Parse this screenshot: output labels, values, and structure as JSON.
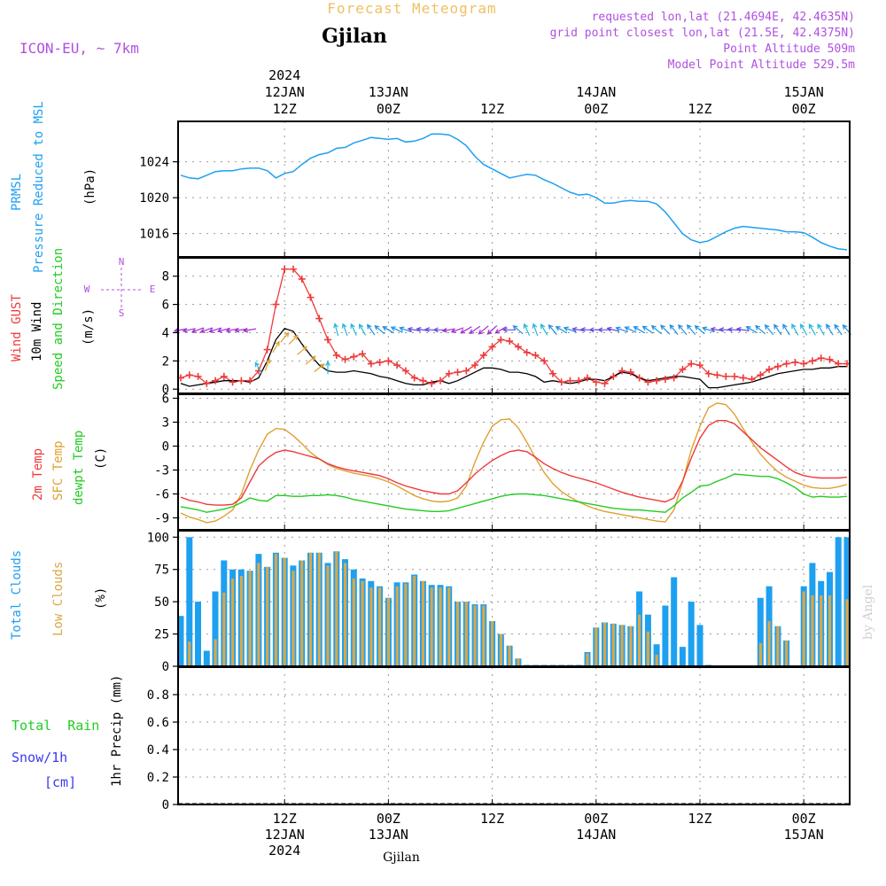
{
  "header": {
    "product": "Forecast Meteogram",
    "model": "ICON-EU, ~ 7km",
    "location": "Gjilan",
    "requested": "requested lon,lat (21.4694E, 42.4635N)",
    "gridpoint": "grid point closest lon,lat (21.5E, 42.4375N)",
    "point_alt": "Point Altitude 509m",
    "model_alt": "Model Point Altitude 529.5m",
    "footer_location": "Gjilan",
    "watermark": "by Angel"
  },
  "colors": {
    "pressure": "#1ea0f0",
    "gust": "#ee3a3a",
    "wind": "#000000",
    "temp2m": "#ee3a3a",
    "sfc": "#e0a030",
    "dewpt": "#22cc22",
    "total_clouds": "#1ea0f0",
    "low_clouds": "#d8a848",
    "label_green": "#22cc22",
    "label_purple": "#b050e0",
    "title_orange": "#f0c060"
  },
  "time_axis": {
    "top": [
      {
        "hour": 12,
        "lines": [
          "2024",
          "12JAN",
          "12Z"
        ]
      },
      {
        "hour": 24,
        "lines": [
          "13JAN",
          "00Z"
        ]
      },
      {
        "hour": 36,
        "lines": [
          "12Z"
        ]
      },
      {
        "hour": 48,
        "lines": [
          "14JAN",
          "00Z"
        ]
      },
      {
        "hour": 60,
        "lines": [
          "12Z"
        ]
      },
      {
        "hour": 72,
        "lines": [
          "15JAN",
          "00Z"
        ]
      }
    ],
    "bottom": [
      {
        "hour": 12,
        "lines": [
          "12Z",
          "12JAN",
          "2024"
        ]
      },
      {
        "hour": 24,
        "lines": [
          "00Z",
          "13JAN"
        ]
      },
      {
        "hour": 36,
        "lines": [
          "12Z"
        ]
      },
      {
        "hour": 48,
        "lines": [
          "00Z",
          "14JAN"
        ]
      },
      {
        "hour": 60,
        "lines": [
          "12Z"
        ]
      },
      {
        "hour": 72,
        "lines": [
          "00Z",
          "15JAN"
        ]
      }
    ]
  },
  "panel_labels": {
    "pressure": {
      "title1": "PRMSL",
      "title2": "Pressure Reduced to MSL",
      "unit": "(hPa)"
    },
    "wind": {
      "title1": "Wind GUST",
      "title2": "10m Wind",
      "title3": "Speed and Direction",
      "unit": "(m/s)",
      "compass": [
        "N",
        "S",
        "W",
        "E"
      ]
    },
    "temp": {
      "title1": "2m Temp",
      "title2": "SFC Temp",
      "title3": "dewpt Temp",
      "unit": "(C)"
    },
    "clouds": {
      "title1": "Total Clouds",
      "title2": "Low Clouds",
      "unit": "(%)"
    },
    "precip": {
      "title1": "Total  Rain",
      "title2": "Snow/1h",
      "title3": "[cm]",
      "unit": "1hr Precip (mm)"
    }
  },
  "chart_data": [
    {
      "type": "line",
      "title": "PRMSL Pressure Reduced to MSL",
      "ylabel": "hPa",
      "x_start_hour": 0,
      "x_end_hour": 77,
      "x_step_hours": 1,
      "ylim": [
        1013.4,
        1028.5
      ],
      "yticks": [
        1016,
        1020,
        1024
      ],
      "series": [
        {
          "name": "PRMSL",
          "values": [
            1022.5,
            1022.2,
            1022.1,
            1022.5,
            1022.9,
            1023.0,
            1023.0,
            1023.2,
            1023.3,
            1023.3,
            1023.0,
            1022.2,
            1022.7,
            1022.9,
            1023.7,
            1024.4,
            1024.8,
            1025.0,
            1025.5,
            1025.6,
            1026.1,
            1026.4,
            1026.7,
            1026.6,
            1026.5,
            1026.6,
            1026.2,
            1026.3,
            1026.6,
            1027.1,
            1027.1,
            1027.0,
            1026.5,
            1025.8,
            1024.6,
            1023.7,
            1023.2,
            1022.7,
            1022.2,
            1022.4,
            1022.6,
            1022.5,
            1022.0,
            1021.6,
            1021.1,
            1020.6,
            1020.3,
            1020.4,
            1020.0,
            1019.4,
            1019.4,
            1019.6,
            1019.7,
            1019.6,
            1019.6,
            1019.3,
            1018.4,
            1017.2,
            1016.0,
            1015.3,
            1015.0,
            1015.2,
            1015.7,
            1016.2,
            1016.6,
            1016.8,
            1016.7,
            1016.6,
            1016.5,
            1016.4,
            1016.2,
            1016.2,
            1016.1,
            1015.6,
            1015.0,
            1014.6,
            1014.3,
            1014.2
          ]
        }
      ]
    },
    {
      "type": "line",
      "title": "Wind GUST / 10m Wind Speed and Direction",
      "ylabel": "m/s",
      "x_start_hour": 0,
      "x_end_hour": 77,
      "x_step_hours": 1,
      "ylim": [
        -0.3,
        9.3
      ],
      "yticks": [
        0,
        2,
        4,
        6,
        8
      ],
      "series": [
        {
          "name": "Wind GUST",
          "values": [
            0.8,
            1.0,
            0.9,
            0.4,
            0.6,
            0.9,
            0.5,
            0.6,
            0.6,
            1.3,
            2.8,
            6.0,
            8.5,
            8.5,
            7.8,
            6.5,
            5.0,
            3.5,
            2.4,
            2.1,
            2.3,
            2.5,
            1.8,
            1.9,
            2.0,
            1.7,
            1.3,
            0.8,
            0.6,
            0.4,
            0.6,
            1.1,
            1.2,
            1.3,
            1.7,
            2.4,
            3.0,
            3.5,
            3.4,
            3.0,
            2.6,
            2.4,
            2.0,
            1.1,
            0.5,
            0.6,
            0.6,
            0.8,
            0.5,
            0.4,
            0.9,
            1.3,
            1.2,
            0.8,
            0.5,
            0.6,
            0.7,
            0.8,
            1.4,
            1.8,
            1.7,
            1.1,
            1.0,
            0.9,
            0.9,
            0.8,
            0.7,
            1.0,
            1.4,
            1.6,
            1.8,
            1.9,
            1.8,
            2.0,
            2.2,
            2.1,
            1.8,
            1.8
          ]
        },
        {
          "name": "10m Wind",
          "values": [
            0.4,
            0.2,
            0.3,
            0.4,
            0.5,
            0.6,
            0.6,
            0.6,
            0.5,
            0.8,
            2.0,
            3.5,
            4.3,
            4.1,
            3.2,
            2.4,
            1.7,
            1.3,
            1.2,
            1.2,
            1.3,
            1.2,
            1.1,
            0.9,
            0.8,
            0.6,
            0.4,
            0.3,
            0.3,
            0.5,
            0.6,
            0.4,
            0.6,
            0.9,
            1.2,
            1.5,
            1.5,
            1.4,
            1.2,
            1.2,
            1.1,
            0.9,
            0.5,
            0.6,
            0.5,
            0.4,
            0.5,
            0.7,
            0.7,
            0.6,
            0.9,
            1.2,
            1.1,
            0.8,
            0.6,
            0.7,
            0.8,
            0.9,
            0.9,
            0.8,
            0.7,
            0.1,
            0.1,
            0.2,
            0.3,
            0.4,
            0.5,
            0.7,
            0.9,
            1.1,
            1.2,
            1.3,
            1.4,
            1.4,
            1.5,
            1.5,
            1.6,
            1.6
          ]
        }
      ],
      "wind_direction_deg": [
        80,
        78,
        70,
        70,
        72,
        75,
        78,
        80,
        80,
        150,
        200,
        210,
        220,
        225,
        230,
        230,
        232,
        180,
        165,
        160,
        155,
        150,
        145,
        130,
        120,
        115,
        110,
        100,
        100,
        95,
        90,
        80,
        70,
        60,
        55,
        50,
        48,
        60,
        90,
        130,
        155,
        160,
        150,
        140,
        120,
        110,
        100,
        95,
        90,
        90,
        105,
        110,
        115,
        120,
        125,
        130,
        135,
        140,
        140,
        140,
        130,
        110,
        100,
        95,
        95,
        100,
        120,
        130,
        140,
        145,
        148,
        150,
        150,
        150,
        150,
        148,
        145,
        140
      ]
    },
    {
      "type": "line",
      "title": "2m Temp / SFC Temp / dewpt Temp",
      "ylabel": "C",
      "x_start_hour": 0,
      "x_end_hour": 77,
      "x_step_hours": 1,
      "ylim": [
        -10.5,
        6.5
      ],
      "yticks": [
        -9,
        -6,
        -3,
        0,
        3,
        6
      ],
      "series": [
        {
          "name": "2m Temp",
          "values": [
            -6.4,
            -6.8,
            -7.0,
            -7.3,
            -7.4,
            -7.4,
            -7.3,
            -6.5,
            -4.5,
            -2.5,
            -1.5,
            -0.8,
            -0.5,
            -0.7,
            -1.0,
            -1.3,
            -1.6,
            -2.2,
            -2.6,
            -2.9,
            -3.1,
            -3.3,
            -3.5,
            -3.7,
            -4.1,
            -4.6,
            -5.0,
            -5.3,
            -5.6,
            -5.8,
            -6.0,
            -6.0,
            -5.6,
            -4.6,
            -3.5,
            -2.6,
            -1.8,
            -1.2,
            -0.7,
            -0.5,
            -0.7,
            -1.4,
            -2.2,
            -2.8,
            -3.3,
            -3.7,
            -4.0,
            -4.3,
            -4.6,
            -5.0,
            -5.4,
            -5.8,
            -6.1,
            -6.4,
            -6.6,
            -6.8,
            -7.0,
            -6.5,
            -4.4,
            -1.5,
            1.0,
            2.6,
            3.2,
            3.2,
            2.8,
            1.8,
            0.8,
            -0.2,
            -1.0,
            -1.8,
            -2.6,
            -3.3,
            -3.7,
            -3.9,
            -4.0,
            -4.0,
            -4.0,
            -3.9
          ]
        },
        {
          "name": "SFC Temp",
          "values": [
            -8.4,
            -8.9,
            -9.2,
            -9.6,
            -9.4,
            -8.8,
            -8.0,
            -6.0,
            -3.0,
            -0.5,
            1.5,
            2.2,
            2.1,
            1.3,
            0.3,
            -0.8,
            -1.6,
            -2.3,
            -2.8,
            -3.1,
            -3.4,
            -3.6,
            -3.8,
            -4.1,
            -4.5,
            -5.0,
            -5.6,
            -6.2,
            -6.6,
            -6.9,
            -7.0,
            -6.9,
            -6.5,
            -5.0,
            -2.0,
            0.5,
            2.5,
            3.3,
            3.4,
            2.3,
            0.5,
            -1.5,
            -3.3,
            -4.7,
            -5.7,
            -6.4,
            -7.0,
            -7.5,
            -7.9,
            -8.2,
            -8.4,
            -8.6,
            -8.8,
            -9.0,
            -9.2,
            -9.4,
            -9.5,
            -8.0,
            -4.5,
            -0.5,
            2.5,
            4.8,
            5.4,
            5.2,
            4.0,
            2.2,
            0.5,
            -1.0,
            -2.2,
            -3.2,
            -3.9,
            -4.4,
            -4.9,
            -5.2,
            -5.3,
            -5.3,
            -5.1,
            -4.8
          ]
        },
        {
          "name": "dewpt Temp",
          "values": [
            -7.6,
            -7.8,
            -8.0,
            -8.3,
            -8.1,
            -7.9,
            -7.6,
            -7.1,
            -6.5,
            -6.8,
            -6.9,
            -6.2,
            -6.2,
            -6.3,
            -6.3,
            -6.2,
            -6.2,
            -6.1,
            -6.2,
            -6.4,
            -6.7,
            -6.9,
            -7.1,
            -7.3,
            -7.5,
            -7.7,
            -7.9,
            -8.0,
            -8.1,
            -8.2,
            -8.2,
            -8.1,
            -7.8,
            -7.5,
            -7.2,
            -6.9,
            -6.6,
            -6.3,
            -6.1,
            -6.0,
            -6.0,
            -6.1,
            -6.2,
            -6.4,
            -6.6,
            -6.8,
            -7.0,
            -7.2,
            -7.4,
            -7.6,
            -7.8,
            -7.9,
            -8.0,
            -8.0,
            -8.1,
            -8.2,
            -8.3,
            -7.5,
            -6.5,
            -5.8,
            -5.0,
            -4.9,
            -4.4,
            -4.0,
            -3.5,
            -3.6,
            -3.7,
            -3.8,
            -3.8,
            -4.1,
            -4.6,
            -5.2,
            -6.0,
            -6.4,
            -6.3,
            -6.4,
            -6.4,
            -6.3
          ]
        }
      ]
    },
    {
      "type": "bar",
      "title": "Total Clouds / Low Clouds",
      "ylabel": "%",
      "x_start_hour": 0,
      "x_end_hour": 77,
      "x_step_hours": 1,
      "ylim": [
        0,
        105
      ],
      "yticks": [
        0,
        25,
        50,
        75,
        100
      ],
      "series": [
        {
          "name": "Total Clouds",
          "values": [
            39,
            100,
            50,
            12,
            58,
            82,
            75,
            75,
            74,
            87,
            77,
            88,
            84,
            78,
            82,
            88,
            88,
            80,
            89,
            83,
            75,
            68,
            66,
            62,
            53,
            65,
            65,
            71,
            66,
            63,
            63,
            62,
            50,
            50,
            48,
            48,
            35,
            25,
            16,
            6,
            1,
            1,
            1,
            1,
            1,
            1,
            1,
            11,
            30,
            34,
            33,
            32,
            31,
            58,
            40,
            17,
            47,
            69,
            15,
            50,
            32,
            1,
            0,
            0,
            0,
            0,
            0,
            53,
            62,
            31,
            20,
            0,
            62,
            80,
            66,
            73,
            100,
            100
          ]
        },
        {
          "name": "Low Clouds",
          "values": [
            0,
            19,
            0,
            0,
            21,
            57,
            68,
            70,
            74,
            80,
            77,
            87,
            84,
            74,
            82,
            88,
            88,
            78,
            89,
            80,
            68,
            66,
            61,
            61,
            53,
            62,
            64,
            70,
            66,
            61,
            61,
            61,
            50,
            50,
            47,
            47,
            35,
            25,
            16,
            6,
            0,
            0,
            0,
            0,
            0,
            0,
            0,
            10,
            30,
            34,
            33,
            32,
            31,
            40,
            27,
            9,
            0,
            0,
            0,
            0,
            0,
            0,
            0,
            0,
            0,
            0,
            0,
            18,
            35,
            31,
            20,
            0,
            58,
            55,
            55,
            55,
            0,
            52
          ]
        }
      ]
    },
    {
      "type": "bar",
      "title": "1hr Precip",
      "ylabel": "1hr Precip (mm)",
      "x_start_hour": 0,
      "x_end_hour": 77,
      "x_step_hours": 1,
      "ylim": [
        0,
        1.0
      ],
      "yticks": [
        0,
        0.2,
        0.4,
        0.6,
        0.8
      ],
      "series": [
        {
          "name": "Total Rain",
          "values": [
            0,
            0,
            0,
            0,
            0,
            0,
            0,
            0,
            0,
            0,
            0,
            0,
            0,
            0,
            0,
            0,
            0,
            0,
            0,
            0,
            0,
            0,
            0,
            0,
            0,
            0,
            0,
            0,
            0,
            0,
            0,
            0,
            0,
            0,
            0,
            0,
            0,
            0,
            0,
            0,
            0,
            0,
            0,
            0,
            0,
            0,
            0,
            0,
            0,
            0,
            0,
            0,
            0,
            0,
            0,
            0,
            0,
            0,
            0,
            0,
            0,
            0,
            0,
            0,
            0,
            0,
            0,
            0,
            0,
            0,
            0,
            0,
            0,
            0,
            0,
            0,
            0,
            0
          ]
        },
        {
          "name": "Snow/1h",
          "values": [
            0,
            0,
            0,
            0,
            0,
            0,
            0,
            0,
            0,
            0,
            0,
            0,
            0,
            0,
            0,
            0,
            0,
            0,
            0,
            0,
            0,
            0,
            0,
            0,
            0,
            0,
            0,
            0,
            0,
            0,
            0,
            0,
            0,
            0,
            0,
            0,
            0,
            0,
            0,
            0,
            0,
            0,
            0,
            0,
            0,
            0,
            0,
            0,
            0,
            0,
            0,
            0,
            0,
            0,
            0,
            0,
            0,
            0,
            0,
            0,
            0,
            0,
            0,
            0,
            0,
            0,
            0,
            0,
            0,
            0,
            0,
            0,
            0,
            0,
            0,
            0,
            0,
            0
          ]
        }
      ]
    }
  ]
}
